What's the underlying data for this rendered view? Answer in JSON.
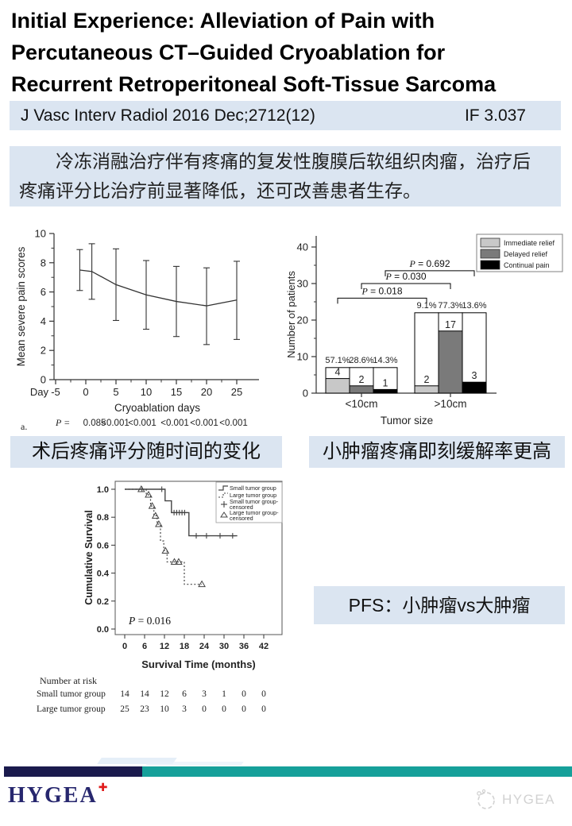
{
  "header": {
    "title_lines": [
      "Initial Experience: Alleviation of Pain with",
      "Percutaneous CT–Guided Cryoablation for",
      "Recurrent Retroperitoneal Soft-Tissue Sarcoma"
    ],
    "journal": "J Vasc Interv Radiol 2016 Dec;2712(12)",
    "impact_factor": "IF 3.037"
  },
  "abstract": {
    "line1": "　　冷冻消融治疗伴有疼痛的复发性腹膜后软组织肉瘤，治疗后",
    "line2": "疼痛评分比治疗前显著降低，还可改善患者生存。"
  },
  "captions": {
    "left": "术后疼痛评分随时间的变化",
    "right": "小肿瘤疼痛即刻缓解率更高",
    "pfs": "PFS：小肿瘤vs大肿瘤"
  },
  "footer": {
    "brand": "HYGEA",
    "brand_cross": "✚",
    "watermark": "HYGEA"
  },
  "colors": {
    "highlight_bg": "#dbe5f1",
    "navy_bar": "#1a1a4d",
    "teal_bar": "#16a09a",
    "brand_navy": "#27276e",
    "brand_red": "#e01b1b"
  },
  "chart_data": [
    {
      "type": "line",
      "subtype": "mean-with-error-bars",
      "panel_label": "a.",
      "xlabel": "Cryoablation days",
      "ylabel": "Mean severe pain scores",
      "x_prefix_label": "Day",
      "xticks": [
        -5,
        0,
        5,
        10,
        15,
        20,
        25
      ],
      "yticks": [
        0,
        2,
        4,
        6,
        8,
        10
      ],
      "xlim": [
        -5,
        27
      ],
      "ylim": [
        0,
        10
      ],
      "x": [
        -1,
        1,
        5,
        10,
        15,
        20,
        25
      ],
      "mean": [
        7.5,
        7.4,
        6.5,
        5.8,
        5.35,
        5.05,
        5.45
      ],
      "upper": [
        8.9,
        9.3,
        8.95,
        8.15,
        7.75,
        7.65,
        8.1
      ],
      "lower": [
        6.1,
        5.5,
        4.05,
        3.45,
        2.95,
        2.4,
        2.75
      ],
      "p_row_label": "P =",
      "p_values": [
        "0.085",
        "<0.001",
        "<0.001",
        "<0.001",
        "<0.001",
        "<0.001"
      ]
    },
    {
      "type": "bar",
      "subtype": "grouped-outline-bars",
      "xlabel": "Tumor size",
      "ylabel": "Number of patients",
      "yticks": [
        0,
        10,
        20,
        30,
        40
      ],
      "ylim": [
        0,
        40
      ],
      "legend": [
        "Immediate relief",
        "Delayed relief",
        "Continual pain"
      ],
      "bar_colors": [
        "#c8c8c8",
        "#7a7a7a",
        "#000000"
      ],
      "groups": [
        {
          "label": "<10cm",
          "total": 7,
          "values": [
            4,
            2,
            1
          ],
          "percents": [
            "57.1%",
            "28.6%",
            "14.3%"
          ]
        },
        {
          "label": ">10cm",
          "total": 22,
          "values": [
            2,
            17,
            3
          ],
          "percents": [
            "9.1%",
            "77.3%",
            "13.6%"
          ]
        }
      ],
      "comparisons": [
        {
          "label": "P = 0.018",
          "bar": 0,
          "height": 26
        },
        {
          "label": "P = 0.030",
          "bar": 1,
          "height": 30
        },
        {
          "label": "P = 0.692",
          "bar": 2,
          "height": 33.5
        }
      ]
    },
    {
      "type": "line",
      "subtype": "kaplan-meier",
      "xlabel": "Survival Time (months)",
      "ylabel": "Cumulative Survival",
      "xticks": [
        0,
        6,
        12,
        18,
        24,
        30,
        36,
        42
      ],
      "ytick_labels": [
        "0.0",
        "0.2",
        "0.4",
        "0.6",
        "0.8",
        "1.0"
      ],
      "xlim": [
        0,
        42
      ],
      "ylim": [
        0,
        1
      ],
      "p_label": "P = 0.016",
      "legend": [
        "Small tumor group",
        "Large tumor group",
        "Small tumor group-",
        "censored",
        "Large tumor group-",
        "censored"
      ],
      "series": [
        {
          "name": "Small tumor group",
          "style": "solid",
          "censor_marker": "plus",
          "steps": [
            [
              0,
              1.0
            ],
            [
              12.2,
              1.0
            ],
            [
              12.2,
              0.917
            ],
            [
              14.1,
              0.917
            ],
            [
              14.1,
              0.833
            ],
            [
              19.4,
              0.833
            ],
            [
              19.4,
              0.667
            ],
            [
              34,
              0.667
            ]
          ],
          "censored": [
            [
              5.2,
              1.0
            ],
            [
              11.2,
              1.0
            ],
            [
              14.9,
              0.833
            ],
            [
              15.7,
              0.833
            ],
            [
              16.5,
              0.833
            ],
            [
              17.3,
              0.833
            ],
            [
              18.1,
              0.833
            ],
            [
              21.6,
              0.667
            ],
            [
              24.7,
              0.667
            ],
            [
              28.8,
              0.667
            ],
            [
              32.6,
              0.667
            ]
          ]
        },
        {
          "name": "Large tumor group",
          "style": "dotted",
          "censor_marker": "tri",
          "steps": [
            [
              0,
              1.0
            ],
            [
              6.5,
              1.0
            ],
            [
              6.5,
              0.96
            ],
            [
              7.8,
              0.96
            ],
            [
              7.8,
              0.88
            ],
            [
              8.8,
              0.88
            ],
            [
              8.8,
              0.81
            ],
            [
              9.8,
              0.81
            ],
            [
              9.8,
              0.75
            ],
            [
              10.8,
              0.75
            ],
            [
              10.8,
              0.63
            ],
            [
              11.8,
              0.63
            ],
            [
              11.8,
              0.56
            ],
            [
              12.8,
              0.56
            ],
            [
              12.8,
              0.48
            ],
            [
              18,
              0.48
            ],
            [
              18,
              0.32
            ],
            [
              23.3,
              0.32
            ]
          ],
          "censored": [
            [
              5.0,
              1.0
            ],
            [
              7.2,
              0.96
            ],
            [
              8.3,
              0.88
            ],
            [
              9.3,
              0.81
            ],
            [
              10.3,
              0.75
            ],
            [
              12.3,
              0.56
            ],
            [
              15.0,
              0.48
            ],
            [
              16.3,
              0.48
            ],
            [
              23.3,
              0.32
            ]
          ]
        }
      ],
      "risk_table": {
        "title": "Number at risk",
        "rows": [
          {
            "label": "Small tumor group",
            "values": [
              14,
              14,
              12,
              6,
              3,
              1,
              0,
              0
            ]
          },
          {
            "label": "Large tumor group",
            "values": [
              25,
              23,
              10,
              3,
              0,
              0,
              0,
              0
            ]
          }
        ]
      }
    }
  ]
}
